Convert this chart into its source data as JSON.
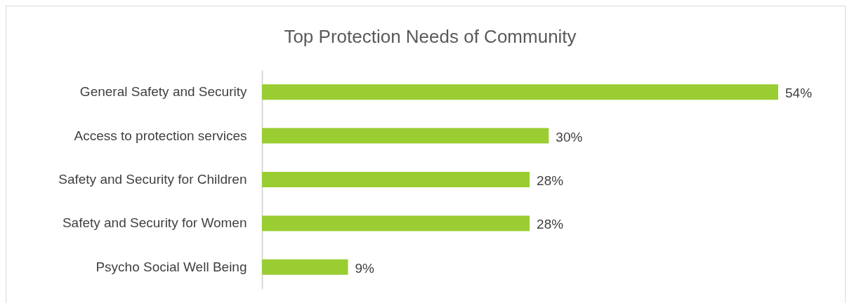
{
  "chart_data": {
    "type": "bar",
    "orientation": "horizontal",
    "title": "Top Protection Needs of Community",
    "categories": [
      "General Safety and Security",
      "Access to protection services",
      "Safety and Security for Children",
      "Safety and Security for Women",
      "Psycho Social Well Being"
    ],
    "values": [
      54,
      30,
      28,
      28,
      9
    ],
    "value_labels": [
      "54%",
      "30%",
      "28%",
      "28%",
      "9%"
    ],
    "color": "#9acd32"
  }
}
